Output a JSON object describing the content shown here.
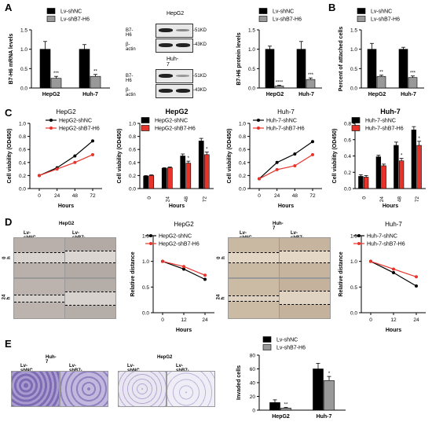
{
  "panels": {
    "A": "A",
    "B": "B",
    "C": "C",
    "D": "D",
    "E": "E"
  },
  "chart_data": [
    {
      "id": "A1",
      "type": "bar",
      "categories": [
        "HepG2",
        "Huh-7"
      ],
      "series": [
        {
          "name": "Lv-shNC",
          "values": [
            1.0,
            1.0
          ],
          "err": [
            0.2,
            0.12
          ],
          "color": "#000000"
        },
        {
          "name": "Lv-shB7-H6",
          "values": [
            0.25,
            0.3
          ],
          "err": [
            0.05,
            0.05
          ],
          "color": "#999999"
        }
      ],
      "sig": [
        "***",
        "**"
      ],
      "ylabel": "B7-H6 mRNA levels",
      "ylim": [
        0,
        1.5
      ],
      "yticks": [
        "0.0",
        "0.5",
        "1.0",
        "1.5"
      ]
    },
    {
      "id": "A2",
      "type": "bar",
      "categories": [
        "HepG2",
        "Huh-7"
      ],
      "series": [
        {
          "name": "Lv-shNC",
          "values": [
            1.0,
            1.0
          ],
          "err": [
            0.08,
            0.2
          ],
          "color": "#000000"
        },
        {
          "name": "Lv-shB7-H6",
          "values": [
            0.05,
            0.22
          ],
          "err": [
            0.02,
            0.04
          ],
          "color": "#999999"
        }
      ],
      "sig": [
        "****",
        "***"
      ],
      "ylabel": "B7-H6 protein levels",
      "ylim": [
        0,
        1.5
      ],
      "yticks": [
        "0.0",
        "0.5",
        "1.0",
        "1.5"
      ]
    },
    {
      "id": "B",
      "type": "bar",
      "categories": [
        "HepG2",
        "Huh-7"
      ],
      "series": [
        {
          "name": "Lv-shNC",
          "values": [
            1.0,
            1.0
          ],
          "err": [
            0.15,
            0.05
          ],
          "color": "#000000"
        },
        {
          "name": "Lv-shB7-H6",
          "values": [
            0.3,
            0.27
          ],
          "err": [
            0.03,
            0.04
          ],
          "color": "#999999"
        }
      ],
      "sig": [
        "**",
        "***"
      ],
      "ylabel": "Percent of attached cells",
      "ylim": [
        0,
        1.5
      ],
      "yticks": [
        "0.0",
        "0.5",
        "1.0",
        "1.5"
      ]
    },
    {
      "id": "C1",
      "type": "line",
      "title": "HepG2",
      "x": [
        0,
        24,
        48,
        72
      ],
      "series": [
        {
          "name": "HepG2-shNC",
          "values": [
            0.2,
            0.32,
            0.5,
            0.73
          ],
          "color": "#000000"
        },
        {
          "name": "HepG2-shB7-H6",
          "values": [
            0.2,
            0.3,
            0.4,
            0.52
          ],
          "color": "#e8332a"
        }
      ],
      "xlabel": "Hours",
      "ylabel": "Cell viability (OD450)",
      "ylim": [
        0,
        1.0
      ],
      "yticks": [
        "0.0",
        "0.2",
        "0.4",
        "0.6",
        "0.8",
        "1.0"
      ]
    },
    {
      "id": "C2",
      "type": "bar",
      "title": "HepG2",
      "categories": [
        "0",
        "24",
        "48",
        "72"
      ],
      "series": [
        {
          "name": "HepG2-shNC",
          "values": [
            0.19,
            0.31,
            0.5,
            0.73
          ],
          "err": [
            0.01,
            0.01,
            0.03,
            0.04
          ],
          "color": "#000000"
        },
        {
          "name": "HepG2-shB7-H6",
          "values": [
            0.2,
            0.32,
            0.39,
            0.52
          ],
          "err": [
            0.01,
            0.01,
            0.03,
            0.04
          ],
          "color": "#e8332a"
        }
      ],
      "sig": [
        "",
        "",
        "*",
        "*"
      ],
      "xlabel": "Hours",
      "ylabel": "Cell viability (OD450)",
      "ylim": [
        0,
        1.0
      ],
      "yticks": [
        "0.0",
        "0.2",
        "0.4",
        "0.6",
        "0.8",
        "1.0"
      ]
    },
    {
      "id": "C3",
      "type": "line",
      "title": "Huh-7",
      "x": [
        0,
        24,
        48,
        72
      ],
      "series": [
        {
          "name": "Huh-7-shNC",
          "values": [
            0.15,
            0.4,
            0.53,
            0.72
          ],
          "color": "#000000"
        },
        {
          "name": "Huh-7-shB7-H6",
          "values": [
            0.15,
            0.29,
            0.35,
            0.52
          ],
          "color": "#e8332a"
        }
      ],
      "xlabel": "Hours",
      "ylabel": "Cell viability (OD450)",
      "ylim": [
        0,
        1.0
      ],
      "yticks": [
        "0.0",
        "0.2",
        "0.4",
        "0.6",
        "0.8",
        "1.0"
      ]
    },
    {
      "id": "C4",
      "type": "bar",
      "title": "Huh-7",
      "categories": [
        "0",
        "24",
        "48",
        "72"
      ],
      "series": [
        {
          "name": "Huh-7-shNC",
          "values": [
            0.15,
            0.39,
            0.53,
            0.72
          ],
          "err": [
            0.02,
            0.02,
            0.04,
            0.04
          ],
          "color": "#000000"
        },
        {
          "name": "Huh-7-shB7-H6",
          "values": [
            0.14,
            0.28,
            0.34,
            0.53
          ],
          "err": [
            0.02,
            0.02,
            0.03,
            0.05
          ],
          "color": "#e8332a"
        }
      ],
      "sig": [
        "",
        "",
        "*",
        "*"
      ],
      "xlabel": "Hours",
      "ylabel": "Cell viability (OD450)",
      "ylim": [
        0,
        0.8
      ],
      "yticks": [
        "0.0",
        "0.2",
        "0.4",
        "0.6",
        "0.8"
      ]
    },
    {
      "id": "D1",
      "type": "line",
      "title": "HepG2",
      "x": [
        0,
        12,
        24
      ],
      "series": [
        {
          "name": "HepG2-shNC",
          "values": [
            1.0,
            0.85,
            0.65
          ],
          "color": "#000000"
        },
        {
          "name": "HepG2-shB7-H6",
          "values": [
            1.0,
            0.9,
            0.73
          ],
          "color": "#e8332a"
        }
      ],
      "xlabel": "Hours",
      "ylabel": "Relative distance",
      "ylim": [
        0,
        1.5
      ],
      "yticks": [
        "0.0",
        "0.5",
        "1.0",
        "1.5"
      ]
    },
    {
      "id": "D2",
      "type": "line",
      "title": "Huh-7",
      "x": [
        0,
        12,
        24
      ],
      "series": [
        {
          "name": "Huh-7-shNC",
          "values": [
            1.0,
            0.78,
            0.52
          ],
          "color": "#000000"
        },
        {
          "name": "Huh-7-shB7-H6",
          "values": [
            1.0,
            0.85,
            0.7
          ],
          "color": "#e8332a"
        }
      ],
      "xlabel": "Hours",
      "ylabel": "Relative distance",
      "ylim": [
        0,
        1.5
      ],
      "yticks": [
        "0.0",
        "0.5",
        "1.0",
        "1.5"
      ]
    },
    {
      "id": "E",
      "type": "bar",
      "categories": [
        "HepG2",
        "Huh-7"
      ],
      "series": [
        {
          "name": "Lv-shNC",
          "values": [
            11,
            60
          ],
          "err": [
            4,
            8
          ],
          "color": "#000000"
        },
        {
          "name": "Lv-shB7-H6",
          "values": [
            3,
            43
          ],
          "err": [
            1,
            6
          ],
          "color": "#999999"
        }
      ],
      "sig": [
        "**",
        "*"
      ],
      "ylabel": "Invaded cells",
      "ylim": [
        0,
        80
      ],
      "yticks": [
        "0",
        "20",
        "40",
        "60",
        "80"
      ]
    }
  ],
  "blots": {
    "hepg2_title": "HepG2",
    "huh7_title": "Huh-7",
    "rows": [
      {
        "label": "B7-H6",
        "size": "-51KD"
      },
      {
        "label": "β-actin",
        "size": "-43KD"
      }
    ]
  },
  "wound": {
    "hepg2_title": "HepG2",
    "huh7_title": "Huh-7",
    "col_left": "Lv-shNC",
    "col_right": "Lv-shB7-H6",
    "row_top": "0 h",
    "row_bottom": "24 h"
  },
  "invasion": {
    "huh7_title": "Huh-7",
    "hepg2_title": "HepG2",
    "col_left": "Lv-shNC",
    "col_right": "Lv-shB7-H6"
  }
}
